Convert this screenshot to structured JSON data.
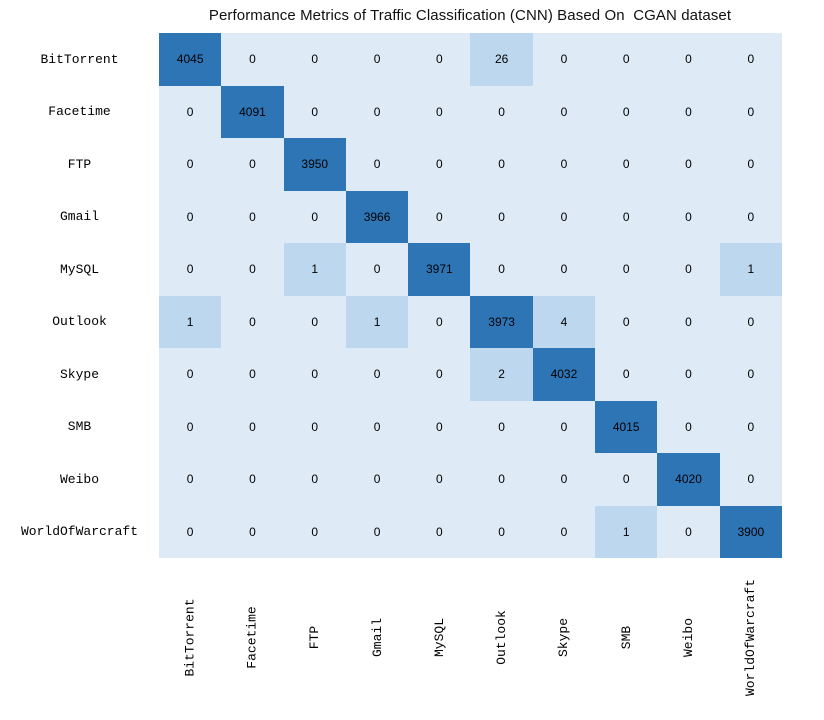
{
  "chart_data": {
    "type": "heatmap",
    "title": "Performance Metrics of Traffic Classification (CNN) Based On  CGAN dataset",
    "categories": [
      "BitTorrent",
      "Facetime",
      "FTP",
      "Gmail",
      "MySQL",
      "Outlook",
      "Skype",
      "SMB",
      "Weibo",
      "WorldOfWarcraft"
    ],
    "matrix": [
      [
        4045,
        0,
        0,
        0,
        0,
        26,
        0,
        0,
        0,
        0
      ],
      [
        0,
        4091,
        0,
        0,
        0,
        0,
        0,
        0,
        0,
        0
      ],
      [
        0,
        0,
        3950,
        0,
        0,
        0,
        0,
        0,
        0,
        0
      ],
      [
        0,
        0,
        0,
        3966,
        0,
        0,
        0,
        0,
        0,
        0
      ],
      [
        0,
        0,
        1,
        0,
        3971,
        0,
        0,
        0,
        0,
        1
      ],
      [
        1,
        0,
        0,
        1,
        0,
        3973,
        4,
        0,
        0,
        0
      ],
      [
        0,
        0,
        0,
        0,
        0,
        2,
        4032,
        0,
        0,
        0
      ],
      [
        0,
        0,
        0,
        0,
        0,
        0,
        0,
        4015,
        0,
        0
      ],
      [
        0,
        0,
        0,
        0,
        0,
        0,
        0,
        0,
        4020,
        0
      ],
      [
        0,
        0,
        0,
        0,
        0,
        0,
        0,
        1,
        0,
        3900
      ]
    ],
    "colors": {
      "diagonal": "#2E75B6",
      "offdiag_nonzero": "#BDD7EE",
      "zero": "#DEEBF7",
      "cell_text": "#000000",
      "background": "#FFFFFF"
    },
    "layout_hints": {
      "x_tick_rotation": -90,
      "grid": "off",
      "legend": "none"
    }
  }
}
